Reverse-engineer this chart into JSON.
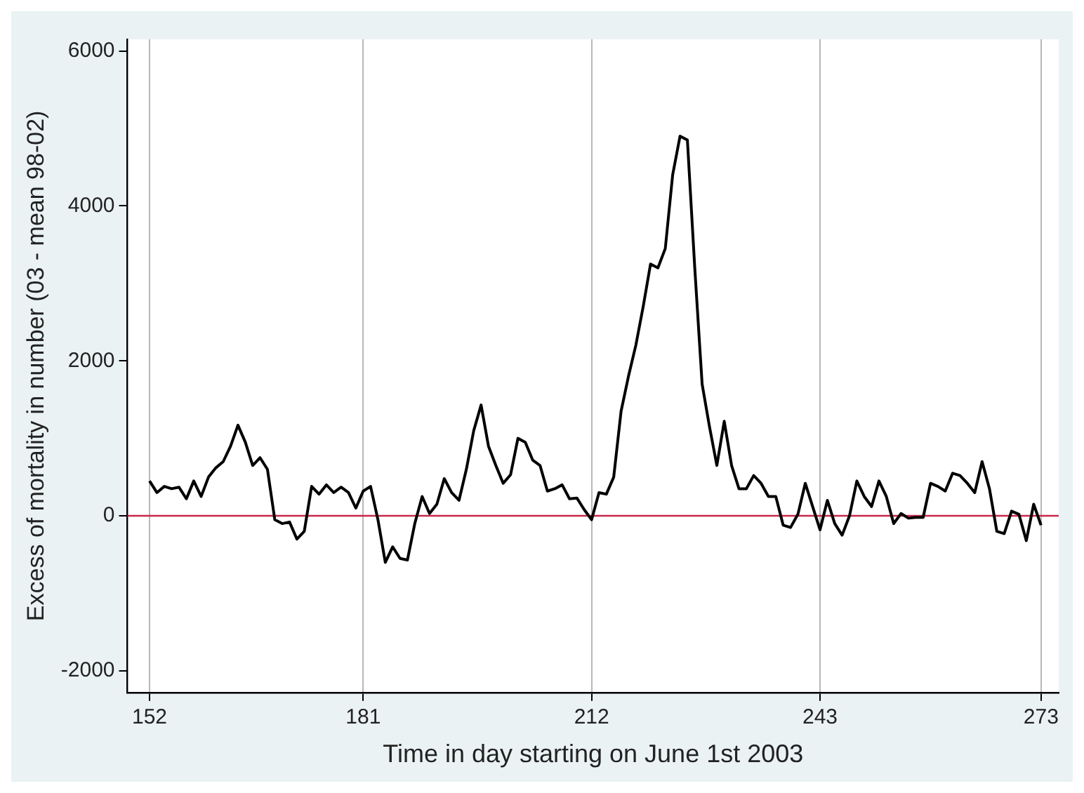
{
  "chart_data": {
    "type": "line",
    "xlabel": "Time in day starting on June 1st 2003",
    "ylabel": "Excess of mortality in number (03 - mean 98-02)",
    "x": [
      152,
      153,
      154,
      155,
      156,
      157,
      158,
      159,
      160,
      161,
      162,
      163,
      164,
      165,
      166,
      167,
      168,
      169,
      170,
      171,
      172,
      173,
      174,
      175,
      176,
      177,
      178,
      179,
      180,
      181,
      182,
      183,
      184,
      185,
      186,
      187,
      188,
      189,
      190,
      191,
      192,
      193,
      194,
      195,
      196,
      197,
      198,
      199,
      200,
      201,
      202,
      203,
      204,
      205,
      206,
      207,
      208,
      209,
      210,
      211,
      212,
      213,
      214,
      215,
      216,
      217,
      218,
      219,
      220,
      221,
      222,
      223,
      224,
      225,
      226,
      227,
      228,
      229,
      230,
      231,
      232,
      233,
      234,
      235,
      236,
      237,
      238,
      239,
      240,
      241,
      242,
      243,
      244,
      245,
      246,
      247,
      248,
      249,
      250,
      251,
      252,
      253,
      254,
      255,
      256,
      257,
      258,
      259,
      260,
      261,
      262,
      263,
      264,
      265,
      266,
      267,
      268,
      269,
      270,
      271,
      272,
      273
    ],
    "series": [
      {
        "color": "#000000",
        "values": [
          450,
          300,
          380,
          350,
          370,
          220,
          450,
          250,
          500,
          620,
          700,
          900,
          1170,
          950,
          650,
          750,
          600,
          -50,
          -100,
          -80,
          -300,
          -200,
          380,
          280,
          400,
          300,
          370,
          300,
          100,
          320,
          380,
          -50,
          -600,
          -400,
          -550,
          -570,
          -100,
          250,
          30,
          150,
          480,
          300,
          200,
          600,
          1100,
          1430,
          900,
          650,
          420,
          530,
          1000,
          950,
          720,
          650,
          320,
          350,
          400,
          220,
          230,
          80,
          -50,
          300,
          280,
          500,
          1350,
          1800,
          2200,
          2700,
          3250,
          3200,
          3450,
          4400,
          4900,
          4850,
          3200,
          1700,
          1150,
          650,
          1220,
          650,
          350,
          350,
          520,
          420,
          250,
          250,
          -120,
          -150,
          20,
          420,
          120,
          -180,
          200,
          -100,
          -250,
          0,
          450,
          250,
          120,
          450,
          250,
          -100,
          30,
          -30,
          -20,
          -20,
          420,
          380,
          320,
          550,
          520,
          420,
          300,
          700,
          350,
          -200,
          -230,
          60,
          20,
          -320,
          150,
          -120
        ]
      }
    ],
    "xlim": [
      149,
      275.4
    ],
    "xticks": [
      152,
      181,
      212,
      243,
      273
    ],
    "ylim": [
      -2280,
      6150
    ],
    "yticks": [
      -2000,
      0,
      2000,
      4000,
      6000
    ],
    "grid": "x",
    "legend": false,
    "marker": "none",
    "line_style": "solid",
    "ref_lines": [
      {
        "axis": "y",
        "value": 0,
        "color": "#c8284a"
      }
    ]
  }
}
